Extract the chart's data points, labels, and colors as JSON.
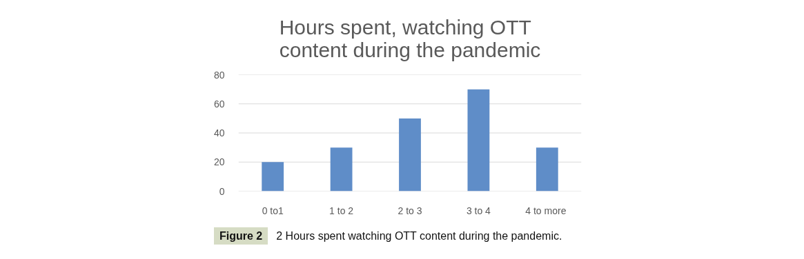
{
  "chart_data": {
    "type": "bar",
    "title": "Hours  spent, watching OTT\ncontent during the pandemic",
    "categories": [
      "0 to1",
      "1 to 2",
      "2 to 3",
      "3 to 4",
      "4 to  more"
    ],
    "values": [
      20,
      30,
      50,
      70,
      30
    ],
    "color": "#5f8dc8",
    "ylim": [
      0,
      80
    ],
    "yticks": [
      0,
      20,
      40,
      60,
      80
    ],
    "grid": "y",
    "annotations": [
      "Figure 2",
      "2 Hours spent watching OTT content during the pandemic."
    ]
  }
}
